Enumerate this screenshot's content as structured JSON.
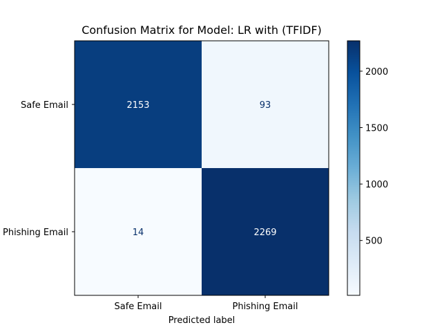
{
  "chart_data": {
    "type": "heatmap",
    "title": "Confusion Matrix for Model: LR with (TFIDF)",
    "xlabel": "Predicted label",
    "ylabel": "",
    "x_categories": [
      "Safe Email",
      "Phishing Email"
    ],
    "y_categories": [
      "Safe Email",
      "Phishing Email"
    ],
    "values": [
      [
        2153,
        93
      ],
      [
        14,
        2269
      ]
    ],
    "colormap": "Blues",
    "colorbar": {
      "ticks": [
        500,
        1000,
        1500,
        2000
      ],
      "range": [
        14,
        2269
      ]
    },
    "grid": false
  },
  "colors": {
    "dark_text": "#08306b",
    "light_text": "#ffffff",
    "blues_stops": [
      "#f7fbff",
      "#deebf7",
      "#c6dbef",
      "#9ecae1",
      "#6baed6",
      "#4292c6",
      "#2171b5",
      "#08519c",
      "#08306b"
    ]
  }
}
